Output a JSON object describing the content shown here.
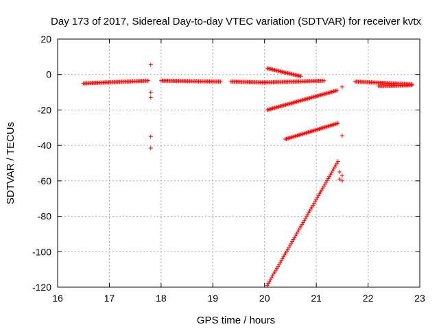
{
  "chart_data": {
    "type": "scatter",
    "title": "Day 173 of 2017, Sidereal Day-to-day VTEC variation (SDTVAR) for receiver kvtx",
    "xlabel": "GPS time / hours",
    "ylabel": "SDTVAR / TECUs",
    "xlim": [
      16,
      23
    ],
    "ylim": [
      -120,
      20
    ],
    "xticks": [
      "16",
      "17",
      "18",
      "19",
      "20",
      "21",
      "22",
      "23"
    ],
    "yticks": [
      "-120",
      "-100",
      "-80",
      "-60",
      "-40",
      "-20",
      "0",
      "20"
    ],
    "grid": true,
    "marker_color": "#ff0000",
    "segments": [
      {
        "x": [
          16.5,
          17.75
        ],
        "y": [
          -5.0,
          -3.5
        ]
      },
      {
        "x": [
          18.0,
          19.15
        ],
        "y": [
          -3.5,
          -4.0
        ]
      },
      {
        "x": [
          19.35,
          20.0
        ],
        "y": [
          -4.0,
          -4.5
        ]
      },
      {
        "x": [
          20.0,
          21.15
        ],
        "y": [
          -4.5,
          -3.5
        ]
      },
      {
        "x": [
          20.05,
          20.7
        ],
        "y": [
          3.5,
          -1.0
        ]
      },
      {
        "x": [
          20.05,
          21.4
        ],
        "y": [
          -20.0,
          -9.0
        ]
      },
      {
        "x": [
          20.4,
          21.42
        ],
        "y": [
          -36.5,
          -27.5
        ]
      },
      {
        "x": [
          20.05,
          21.42
        ],
        "y": [
          -119.0,
          -49.0
        ]
      },
      {
        "x": [
          21.75,
          22.85
        ],
        "y": [
          -4.0,
          -5.5
        ]
      },
      {
        "x": [
          22.2,
          22.85
        ],
        "y": [
          -6.5,
          -6.0
        ]
      }
    ],
    "points": [
      {
        "x": 17.8,
        "y": 5.5
      },
      {
        "x": 17.8,
        "y": -10.0
      },
      {
        "x": 17.8,
        "y": -13.0
      },
      {
        "x": 17.8,
        "y": -35.0
      },
      {
        "x": 17.8,
        "y": -41.5
      },
      {
        "x": 21.5,
        "y": -34.5
      },
      {
        "x": 21.5,
        "y": -7.0
      },
      {
        "x": 21.45,
        "y": -55.0
      },
      {
        "x": 21.5,
        "y": -57.0
      },
      {
        "x": 21.45,
        "y": -59.0
      },
      {
        "x": 21.5,
        "y": -60.0
      }
    ]
  }
}
